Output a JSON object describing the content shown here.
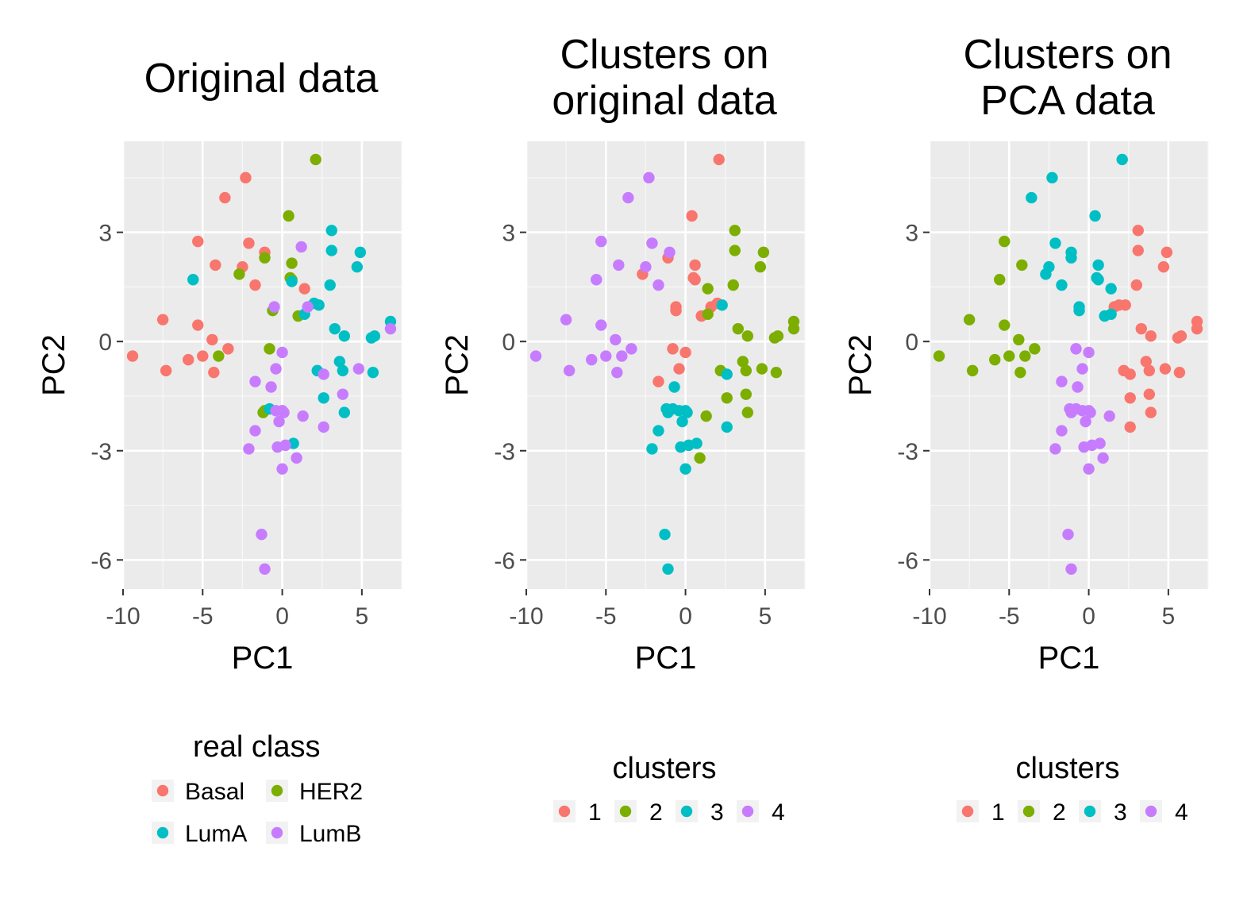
{
  "chart_data": [
    {
      "type": "scatter",
      "title": [
        "Original data"
      ],
      "xlabel": "PC1",
      "ylabel": "PC2",
      "xlim": [
        -10,
        7.5
      ],
      "ylim": [
        -6.8,
        5.5
      ],
      "xticks": [
        -10,
        -5,
        0,
        5
      ],
      "yticks": [
        -6,
        -3,
        0,
        3
      ],
      "xtick_labels": [
        "-10",
        "-5",
        "0",
        "5"
      ],
      "ytick_labels": [
        "-6",
        "-3",
        "0",
        "3"
      ],
      "legend": {
        "title": "real class",
        "columns": 2,
        "placement": "bottom"
      },
      "series": [
        {
          "name": "Basal",
          "color": "#F8766D",
          "points": [
            [
              -2.3,
              4.5
            ],
            [
              -3.6,
              3.95
            ],
            [
              -5.3,
              2.75
            ],
            [
              -2.1,
              2.7
            ],
            [
              -4.2,
              2.1
            ],
            [
              -2.5,
              2.05
            ],
            [
              -1.1,
              2.45
            ],
            [
              -1.7,
              1.55
            ],
            [
              1.4,
              1.45
            ],
            [
              -7.5,
              0.6
            ],
            [
              -5.3,
              0.45
            ],
            [
              -4.4,
              0.05
            ],
            [
              -3.4,
              -0.2
            ],
            [
              -5.0,
              -0.4
            ],
            [
              -9.4,
              -0.4
            ],
            [
              -5.9,
              -0.5
            ],
            [
              -7.3,
              -0.8
            ],
            [
              -4.3,
              -0.85
            ]
          ]
        },
        {
          "name": "HER2",
          "color": "#7CAE00",
          "points": [
            [
              2.1,
              5.0
            ],
            [
              0.4,
              3.45
            ],
            [
              -1.1,
              2.3
            ],
            [
              0.6,
              2.15
            ],
            [
              -2.7,
              1.85
            ],
            [
              0.5,
              1.75
            ],
            [
              0.6,
              1.7
            ],
            [
              -0.6,
              0.85
            ],
            [
              1.0,
              0.7
            ],
            [
              -0.8,
              -0.2
            ],
            [
              -4.0,
              -0.4
            ],
            [
              -1.1,
              -1.9
            ],
            [
              -1.2,
              -1.95
            ]
          ]
        },
        {
          "name": "LumA",
          "color": "#00BFC4",
          "points": [
            [
              3.1,
              3.05
            ],
            [
              3.1,
              2.5
            ],
            [
              4.9,
              2.45
            ],
            [
              4.7,
              2.05
            ],
            [
              0.6,
              1.65
            ],
            [
              -5.6,
              1.7
            ],
            [
              3.0,
              1.55
            ],
            [
              2.0,
              1.05
            ],
            [
              2.3,
              1.0
            ],
            [
              1.4,
              0.75
            ],
            [
              3.3,
              0.35
            ],
            [
              6.8,
              0.55
            ],
            [
              3.9,
              0.15
            ],
            [
              5.6,
              0.1
            ],
            [
              5.8,
              0.15
            ],
            [
              3.6,
              -0.55
            ],
            [
              3.8,
              -0.8
            ],
            [
              2.2,
              -0.8
            ],
            [
              5.7,
              -0.85
            ],
            [
              2.6,
              -1.55
            ],
            [
              3.9,
              -1.95
            ],
            [
              -0.8,
              -1.85
            ],
            [
              0.7,
              -2.8
            ]
          ]
        },
        {
          "name": "LumB",
          "color": "#C77CFF",
          "points": [
            [
              1.2,
              2.6
            ],
            [
              -0.5,
              0.95
            ],
            [
              1.6,
              0.95
            ],
            [
              0.0,
              -0.3
            ],
            [
              6.8,
              0.35
            ],
            [
              -0.4,
              -0.75
            ],
            [
              4.8,
              -0.75
            ],
            [
              2.6,
              -0.9
            ],
            [
              -1.7,
              -1.1
            ],
            [
              -0.7,
              -1.25
            ],
            [
              3.8,
              -1.45
            ],
            [
              -0.4,
              -1.9
            ],
            [
              0.0,
              -1.9
            ],
            [
              0.1,
              -1.95
            ],
            [
              -0.2,
              -2.2
            ],
            [
              1.3,
              -2.05
            ],
            [
              -1.7,
              -2.45
            ],
            [
              2.6,
              -2.35
            ],
            [
              -2.1,
              -2.95
            ],
            [
              -0.3,
              -2.9
            ],
            [
              0.2,
              -2.85
            ],
            [
              0.9,
              -3.2
            ],
            [
              0.0,
              -3.5
            ],
            [
              -1.3,
              -5.3
            ],
            [
              -1.1,
              -6.25
            ]
          ]
        }
      ]
    },
    {
      "type": "scatter",
      "title": [
        "Clusters on",
        "original data"
      ],
      "xlabel": "PC1",
      "ylabel": "PC2",
      "xlim": [
        -10,
        7.5
      ],
      "ylim": [
        -6.8,
        5.5
      ],
      "xticks": [
        -10,
        -5,
        0,
        5
      ],
      "yticks": [
        -6,
        -3,
        0,
        3
      ],
      "xtick_labels": [
        "-10",
        "-5",
        "0",
        "5"
      ],
      "ytick_labels": [
        "-6",
        "-3",
        "0",
        "3"
      ],
      "legend": {
        "title": "clusters",
        "columns": 4,
        "placement": "bottom"
      },
      "series": [
        {
          "name": "1",
          "color": "#F8766D",
          "points": [
            [
              2.1,
              5.0
            ],
            [
              0.4,
              3.45
            ],
            [
              -1.1,
              2.3
            ],
            [
              0.6,
              2.1
            ],
            [
              -2.7,
              1.85
            ],
            [
              0.5,
              1.75
            ],
            [
              0.6,
              1.7
            ],
            [
              -0.6,
              0.85
            ],
            [
              -0.6,
              0.95
            ],
            [
              1.0,
              0.7
            ],
            [
              1.6,
              0.95
            ],
            [
              2.0,
              1.05
            ],
            [
              -0.8,
              -0.2
            ],
            [
              0.0,
              -0.3
            ],
            [
              -0.4,
              -0.75
            ],
            [
              -1.7,
              -1.1
            ]
          ]
        },
        {
          "name": "2",
          "color": "#7CAE00",
          "points": [
            [
              3.1,
              3.05
            ],
            [
              3.1,
              2.5
            ],
            [
              4.9,
              2.45
            ],
            [
              4.7,
              2.05
            ],
            [
              3.0,
              1.55
            ],
            [
              1.4,
              1.45
            ],
            [
              1.4,
              0.75
            ],
            [
              3.3,
              0.35
            ],
            [
              6.8,
              0.55
            ],
            [
              6.8,
              0.35
            ],
            [
              3.9,
              0.15
            ],
            [
              5.6,
              0.1
            ],
            [
              5.8,
              0.15
            ],
            [
              3.6,
              -0.55
            ],
            [
              3.8,
              -0.8
            ],
            [
              2.2,
              -0.8
            ],
            [
              4.8,
              -0.75
            ],
            [
              5.7,
              -0.85
            ],
            [
              3.8,
              -1.45
            ],
            [
              2.6,
              -1.55
            ],
            [
              3.9,
              -1.95
            ],
            [
              1.3,
              -2.05
            ],
            [
              0.9,
              -3.2
            ]
          ]
        },
        {
          "name": "3",
          "color": "#00BFC4",
          "points": [
            [
              2.3,
              1.0
            ],
            [
              2.6,
              -0.9
            ],
            [
              -0.7,
              -1.25
            ],
            [
              -1.2,
              -1.85
            ],
            [
              -1.1,
              -1.95
            ],
            [
              -0.8,
              -1.85
            ],
            [
              -0.4,
              -1.9
            ],
            [
              0.0,
              -1.9
            ],
            [
              0.1,
              -1.95
            ],
            [
              -0.2,
              -2.2
            ],
            [
              -1.7,
              -2.45
            ],
            [
              2.6,
              -2.35
            ],
            [
              -2.1,
              -2.95
            ],
            [
              -0.3,
              -2.9
            ],
            [
              0.2,
              -2.85
            ],
            [
              0.7,
              -2.8
            ],
            [
              0.0,
              -3.5
            ],
            [
              -1.3,
              -5.3
            ],
            [
              -1.1,
              -6.25
            ]
          ]
        },
        {
          "name": "4",
          "color": "#C77CFF",
          "points": [
            [
              -2.3,
              4.5
            ],
            [
              -3.6,
              3.95
            ],
            [
              -5.3,
              2.75
            ],
            [
              -2.1,
              2.7
            ],
            [
              -4.2,
              2.1
            ],
            [
              -2.5,
              2.05
            ],
            [
              -1.0,
              2.45
            ],
            [
              -1.7,
              1.55
            ],
            [
              -5.6,
              1.7
            ],
            [
              -7.5,
              0.6
            ],
            [
              -5.3,
              0.45
            ],
            [
              -4.4,
              0.05
            ],
            [
              -3.4,
              -0.2
            ],
            [
              -4.0,
              -0.4
            ],
            [
              -5.0,
              -0.4
            ],
            [
              -9.4,
              -0.4
            ],
            [
              -5.9,
              -0.5
            ],
            [
              -7.3,
              -0.8
            ],
            [
              -4.3,
              -0.85
            ]
          ]
        }
      ]
    },
    {
      "type": "scatter",
      "title": [
        "Clusters on",
        "PCA data"
      ],
      "xlabel": "PC1",
      "ylabel": "PC2",
      "xlim": [
        -10,
        7.5
      ],
      "ylim": [
        -6.8,
        5.5
      ],
      "xticks": [
        -10,
        -5,
        0,
        5
      ],
      "yticks": [
        -6,
        -3,
        0,
        3
      ],
      "xtick_labels": [
        "-10",
        "-5",
        "0",
        "5"
      ],
      "ytick_labels": [
        "-6",
        "-3",
        "0",
        "3"
      ],
      "legend": {
        "title": "clusters",
        "columns": 4,
        "placement": "bottom"
      },
      "series": [
        {
          "name": "1",
          "color": "#F8766D",
          "points": [
            [
              3.1,
              3.05
            ],
            [
              3.1,
              2.5
            ],
            [
              4.9,
              2.45
            ],
            [
              4.7,
              2.05
            ],
            [
              3.0,
              1.55
            ],
            [
              1.9,
              1.0
            ],
            [
              2.3,
              1.0
            ],
            [
              1.6,
              0.95
            ],
            [
              3.3,
              0.35
            ],
            [
              6.8,
              0.55
            ],
            [
              6.8,
              0.35
            ],
            [
              3.9,
              0.15
            ],
            [
              5.6,
              0.1
            ],
            [
              5.8,
              0.15
            ],
            [
              3.6,
              -0.55
            ],
            [
              3.8,
              -0.8
            ],
            [
              2.2,
              -0.8
            ],
            [
              2.6,
              -0.9
            ],
            [
              4.8,
              -0.75
            ],
            [
              5.7,
              -0.85
            ],
            [
              3.8,
              -1.45
            ],
            [
              2.6,
              -1.55
            ],
            [
              3.9,
              -1.95
            ],
            [
              2.6,
              -2.35
            ]
          ]
        },
        {
          "name": "2",
          "color": "#7CAE00",
          "points": [
            [
              -5.3,
              2.75
            ],
            [
              -4.2,
              2.1
            ],
            [
              -5.6,
              1.7
            ],
            [
              -7.5,
              0.6
            ],
            [
              -5.3,
              0.45
            ],
            [
              -4.4,
              0.05
            ],
            [
              -3.4,
              -0.2
            ],
            [
              -4.0,
              -0.4
            ],
            [
              -5.0,
              -0.4
            ],
            [
              -9.4,
              -0.4
            ],
            [
              -5.9,
              -0.5
            ],
            [
              -7.3,
              -0.8
            ],
            [
              -4.3,
              -0.85
            ]
          ]
        },
        {
          "name": "3",
          "color": "#00BFC4",
          "points": [
            [
              2.1,
              5.0
            ],
            [
              -2.3,
              4.5
            ],
            [
              -3.6,
              3.95
            ],
            [
              0.4,
              3.45
            ],
            [
              -2.1,
              2.7
            ],
            [
              -1.1,
              2.45
            ],
            [
              -1.1,
              2.3
            ],
            [
              0.6,
              2.1
            ],
            [
              -2.7,
              1.85
            ],
            [
              -2.5,
              2.05
            ],
            [
              0.5,
              1.75
            ],
            [
              0.6,
              1.7
            ],
            [
              -1.7,
              1.55
            ],
            [
              1.4,
              1.45
            ],
            [
              -0.6,
              0.85
            ],
            [
              -0.6,
              0.95
            ],
            [
              1.0,
              0.7
            ],
            [
              1.4,
              0.75
            ]
          ]
        },
        {
          "name": "4",
          "color": "#C77CFF",
          "points": [
            [
              -0.8,
              -0.2
            ],
            [
              0.0,
              -0.3
            ],
            [
              -0.4,
              -0.75
            ],
            [
              -1.7,
              -1.1
            ],
            [
              -0.7,
              -1.25
            ],
            [
              -1.2,
              -1.85
            ],
            [
              -1.1,
              -1.95
            ],
            [
              -0.8,
              -1.85
            ],
            [
              -0.4,
              -1.9
            ],
            [
              0.0,
              -1.9
            ],
            [
              0.1,
              -1.95
            ],
            [
              -0.2,
              -2.2
            ],
            [
              1.3,
              -2.05
            ],
            [
              -1.7,
              -2.45
            ],
            [
              -2.1,
              -2.95
            ],
            [
              -0.3,
              -2.9
            ],
            [
              0.2,
              -2.85
            ],
            [
              0.7,
              -2.8
            ],
            [
              0.9,
              -3.2
            ],
            [
              0.0,
              -3.5
            ],
            [
              -1.3,
              -5.3
            ],
            [
              -1.1,
              -6.25
            ]
          ]
        }
      ]
    }
  ]
}
